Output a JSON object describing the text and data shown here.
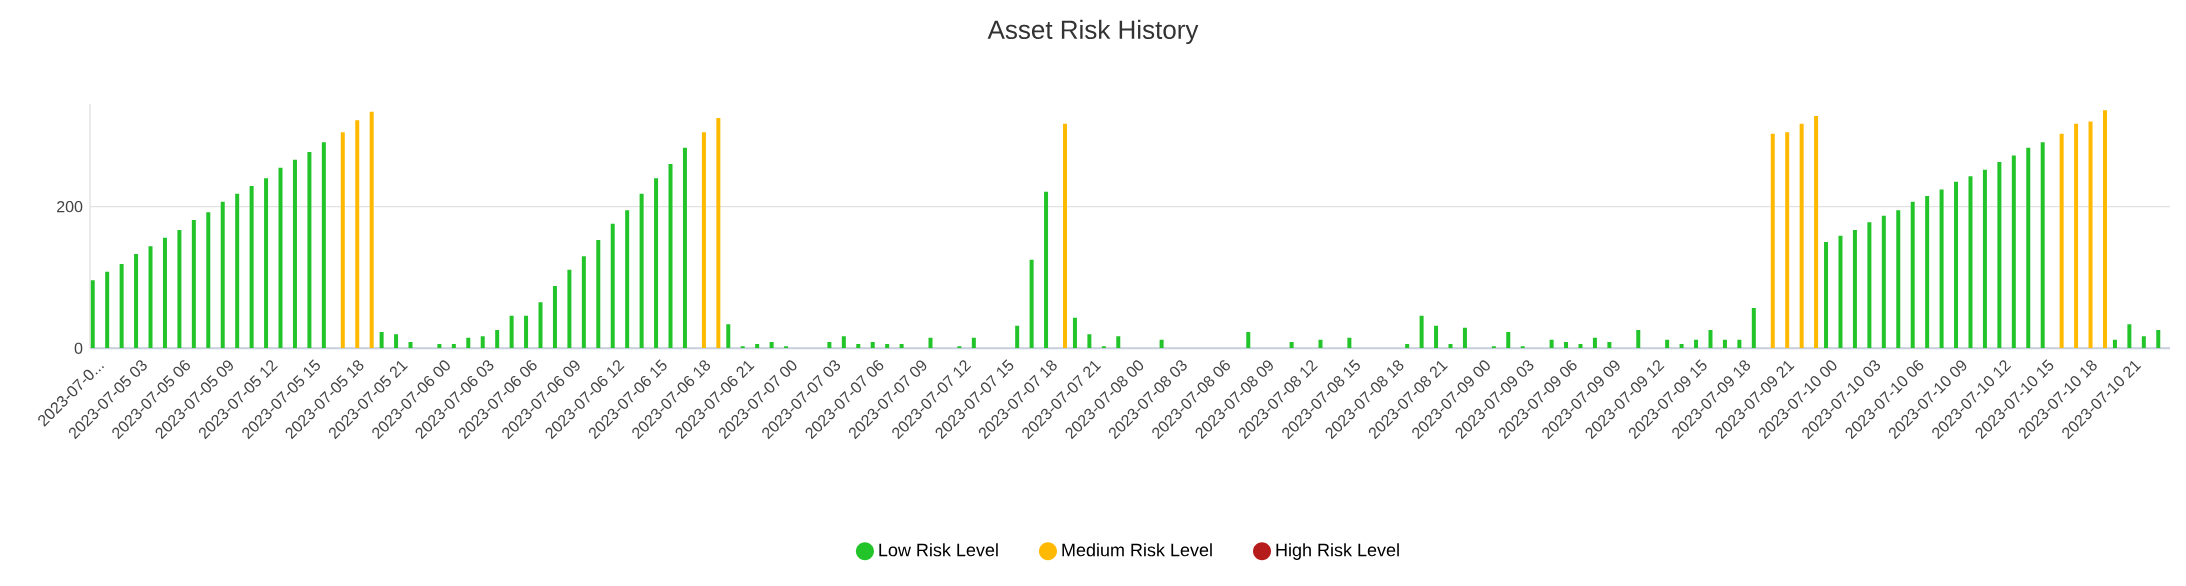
{
  "chart_data": {
    "type": "bar",
    "title": "Asset Risk History",
    "categories": [
      "2023-07-0...",
      null,
      null,
      "2023-07-05 03",
      null,
      null,
      "2023-07-05 06",
      null,
      null,
      "2023-07-05 09",
      null,
      null,
      "2023-07-05 12",
      null,
      null,
      "2023-07-05 15",
      null,
      null,
      "2023-07-05 18",
      null,
      null,
      "2023-07-05 21",
      null,
      null,
      "2023-07-06 00",
      null,
      null,
      "2023-07-06 03",
      null,
      null,
      "2023-07-06 06",
      null,
      null,
      "2023-07-06 09",
      null,
      null,
      "2023-07-06 12",
      null,
      null,
      "2023-07-06 15",
      null,
      null,
      "2023-07-06 18",
      null,
      null,
      "2023-07-06 21",
      null,
      null,
      "2023-07-07 00",
      null,
      null,
      "2023-07-07 03",
      null,
      null,
      "2023-07-07 06",
      null,
      null,
      "2023-07-07 09",
      null,
      null,
      "2023-07-07 12",
      null,
      null,
      "2023-07-07 15",
      null,
      null,
      "2023-07-07 18",
      null,
      null,
      "2023-07-07 21",
      null,
      null,
      "2023-07-08 00",
      null,
      null,
      "2023-07-08 03",
      null,
      null,
      "2023-07-08 06",
      null,
      null,
      "2023-07-08 09",
      null,
      null,
      "2023-07-08 12",
      null,
      null,
      "2023-07-08 15",
      null,
      null,
      "2023-07-08 18",
      null,
      null,
      "2023-07-08 21",
      null,
      null,
      "2023-07-09 00",
      null,
      null,
      "2023-07-09 03",
      null,
      null,
      "2023-07-09 06",
      null,
      null,
      "2023-07-09 09",
      null,
      null,
      "2023-07-09 12",
      null,
      null,
      "2023-07-09 15",
      null,
      null,
      "2023-07-09 18",
      null,
      null,
      "2023-07-09 21",
      null,
      null,
      "2023-07-10 00",
      null,
      null,
      "2023-07-10 03",
      null,
      null,
      "2023-07-10 06",
      null,
      null,
      "2023-07-10 09",
      null,
      null,
      "2023-07-10 12",
      null,
      null,
      "2023-07-10 15",
      null,
      null,
      "2023-07-10 18",
      null,
      null,
      "2023-07-10 21",
      null,
      null
    ],
    "series": [
      {
        "name": "Low Risk Level",
        "color": "#22c42a",
        "values": [
          96,
          108,
          119,
          133,
          144,
          156,
          167,
          181,
          192,
          207,
          218,
          229,
          240,
          255,
          266,
          277,
          291,
          null,
          null,
          null,
          23,
          20,
          9,
          null,
          6,
          6,
          15,
          17,
          26,
          46,
          46,
          65,
          88,
          111,
          130,
          153,
          176,
          195,
          218,
          240,
          260,
          283,
          null,
          null,
          34,
          3,
          6,
          9,
          3,
          null,
          null,
          9,
          17,
          6,
          9,
          6,
          6,
          null,
          15,
          null,
          3,
          15,
          null,
          null,
          32,
          125,
          221,
          null,
          43,
          20,
          3,
          17,
          null,
          null,
          12,
          null,
          null,
          null,
          null,
          null,
          23,
          null,
          null,
          9,
          null,
          12,
          null,
          15,
          null,
          null,
          null,
          6,
          46,
          32,
          6,
          29,
          null,
          3,
          23,
          3,
          null,
          12,
          9,
          6,
          15,
          9,
          null,
          26,
          null,
          12,
          6,
          12,
          26,
          12,
          12,
          57,
          null,
          null,
          null,
          null,
          150,
          159,
          167,
          178,
          187,
          195,
          207,
          215,
          224,
          235,
          243,
          252,
          263,
          272,
          283,
          291,
          null,
          null,
          null,
          null,
          12,
          34,
          17,
          26
        ]
      },
      {
        "name": "Medium Risk Level",
        "color": "#ffb900",
        "values": [
          null,
          null,
          null,
          null,
          null,
          null,
          null,
          null,
          null,
          null,
          null,
          null,
          null,
          null,
          null,
          null,
          null,
          305,
          322,
          334,
          null,
          null,
          null,
          null,
          null,
          null,
          null,
          null,
          null,
          null,
          null,
          null,
          null,
          null,
          null,
          null,
          null,
          null,
          null,
          null,
          null,
          null,
          305,
          325,
          null,
          null,
          null,
          null,
          null,
          null,
          null,
          null,
          null,
          null,
          null,
          null,
          null,
          null,
          null,
          null,
          null,
          null,
          null,
          null,
          null,
          null,
          null,
          317,
          null,
          null,
          null,
          null,
          null,
          null,
          null,
          null,
          null,
          null,
          null,
          null,
          null,
          null,
          null,
          null,
          null,
          null,
          null,
          null,
          null,
          null,
          null,
          null,
          null,
          null,
          null,
          null,
          null,
          null,
          null,
          null,
          null,
          null,
          null,
          null,
          null,
          null,
          null,
          null,
          null,
          null,
          null,
          null,
          null,
          null,
          null,
          null,
          303,
          305,
          317,
          328,
          null,
          null,
          null,
          null,
          null,
          null,
          null,
          null,
          null,
          null,
          null,
          null,
          null,
          null,
          null,
          null,
          303,
          317,
          320,
          336,
          null,
          null,
          null,
          null
        ]
      },
      {
        "name": "High Risk Level",
        "color": "#b71c1c",
        "values": [
          null,
          null,
          null,
          null,
          null,
          null,
          null,
          null,
          null,
          null,
          null,
          null,
          null,
          null,
          null,
          null,
          null,
          null,
          null,
          null,
          null,
          null,
          null,
          null,
          null,
          null,
          null,
          null,
          null,
          null,
          null,
          null,
          null,
          null,
          null,
          null,
          null,
          null,
          null,
          null,
          null,
          null,
          null,
          null,
          null,
          null,
          null,
          null,
          null,
          null,
          null,
          null,
          null,
          null,
          null,
          null,
          null,
          null,
          null,
          null,
          null,
          null,
          null,
          null,
          null,
          null,
          null,
          null,
          null,
          null,
          null,
          null,
          null,
          null,
          null,
          null,
          null,
          null,
          null,
          null,
          null,
          null,
          null,
          null,
          null,
          null,
          null,
          null,
          null,
          null,
          null,
          null,
          null,
          null,
          null,
          null,
          null,
          null,
          null,
          null,
          null,
          null,
          null,
          null,
          null,
          null,
          null,
          null,
          null,
          null,
          null,
          null,
          null,
          null,
          null,
          null,
          null,
          null,
          null,
          null,
          null,
          null,
          null,
          null,
          null,
          null,
          null,
          null,
          null,
          null,
          null,
          null,
          null,
          null,
          null,
          null,
          null,
          null,
          null,
          null,
          null,
          null,
          null,
          null
        ]
      }
    ],
    "ylim": [
      0,
      345
    ],
    "yticks": [
      0,
      200
    ],
    "grid": "y",
    "legend": "bottom"
  }
}
